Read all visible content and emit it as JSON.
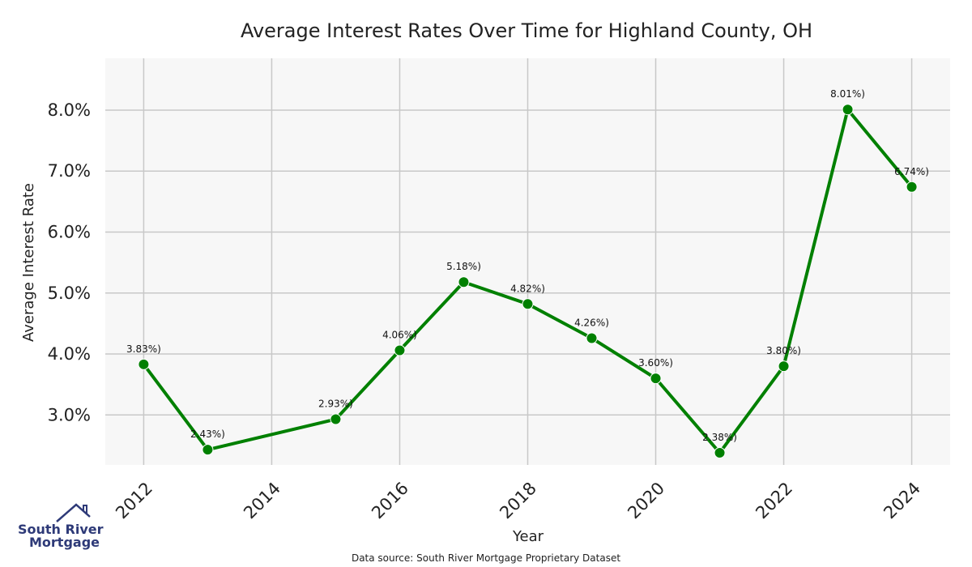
{
  "chart_data": {
    "type": "line",
    "title": "Average Interest Rates Over Time for Highland County, OH",
    "xlabel": "Year",
    "ylabel": "Average Interest Rate",
    "x": [
      2012,
      2013,
      2015,
      2016,
      2017,
      2018,
      2019,
      2020,
      2021,
      2022,
      2023,
      2024
    ],
    "values": [
      3.83,
      2.43,
      2.93,
      4.06,
      5.18,
      4.82,
      4.26,
      3.6,
      2.38,
      3.8,
      8.01,
      6.74
    ],
    "data_labels": [
      "3.83%)",
      "2.43%)",
      "2.93%)",
      "4.06%)",
      "5.18%)",
      "4.82%)",
      "4.26%)",
      "3.60%)",
      "2.38%)",
      "3.80%)",
      "8.01%)",
      "6.74%)"
    ],
    "xlim": [
      2011.4,
      2024.6
    ],
    "ylim": [
      2.18,
      8.85
    ],
    "x_ticks": [
      2012,
      2014,
      2016,
      2018,
      2020,
      2022,
      2024
    ],
    "x_tick_labels": [
      "2012",
      "2014",
      "2016",
      "2018",
      "2020",
      "2022",
      "2024"
    ],
    "y_ticks": [
      3,
      4,
      5,
      6,
      7,
      8
    ],
    "y_tick_labels": [
      "3.0%",
      "4.0%",
      "5.0%",
      "6.0%",
      "7.0%",
      "8.0%"
    ],
    "grid": true,
    "colors": {
      "line": "#008000",
      "plot_background": "#f7f7f7",
      "grid": "#c8c8c8"
    }
  },
  "footer": {
    "source": "Data source: South River Mortgage Proprietary Dataset"
  },
  "logo": {
    "line1": "South River",
    "line2": "Mortgage",
    "icon": "house-roof-icon",
    "color": "#2e3a78"
  }
}
